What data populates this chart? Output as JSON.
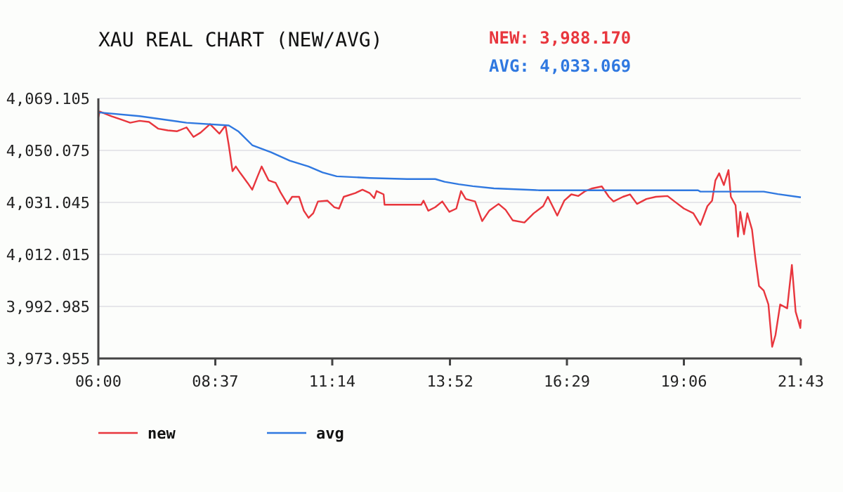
{
  "chart_data": {
    "type": "line",
    "title": "XAU REAL CHART (NEW/AVG)",
    "annotations": [
      "NEW: 3,988.170",
      "AVG: 4,033.069"
    ],
    "xlim": [
      6,
      21.7167
    ],
    "xticks": [
      {
        "value": 6,
        "label": "06:00"
      },
      {
        "value": 8.6167,
        "label": "08:37"
      },
      {
        "value": 11.2333,
        "label": "11:14"
      },
      {
        "value": 13.8667,
        "label": "13:52"
      },
      {
        "value": 16.4833,
        "label": "16:29"
      },
      {
        "value": 19.1,
        "label": "19:06"
      },
      {
        "value": 21.7167,
        "label": "21:43"
      }
    ],
    "ylim": [
      3973.955,
      4069.105
    ],
    "yticks": [
      {
        "value": 3973.955,
        "label": "3,973.955"
      },
      {
        "value": 3992.985,
        "label": "3,992.985"
      },
      {
        "value": 4012.015,
        "label": "4,012.015"
      },
      {
        "value": 4031.045,
        "label": "4,031.045"
      },
      {
        "value": 4050.075,
        "label": "4,050.075"
      },
      {
        "value": 4069.105,
        "label": "4,069.105"
      }
    ],
    "grid": "y",
    "legend": "bottom",
    "marker": "none",
    "line_style": "solid",
    "series": [
      {
        "name": "new",
        "color": "#e8363d",
        "x": [
          6.0,
          6.03,
          6.135,
          6.293,
          6.503,
          6.713,
          6.923,
          7.133,
          7.343,
          7.553,
          7.763,
          7.973,
          8.13,
          8.288,
          8.498,
          8.708,
          8.844,
          8.918,
          9.002,
          9.075,
          9.18,
          9.338,
          9.443,
          9.548,
          9.653,
          9.81,
          9.967,
          10.073,
          10.23,
          10.335,
          10.492,
          10.598,
          10.703,
          10.808,
          10.913,
          11.123,
          11.28,
          11.385,
          11.49,
          11.752,
          11.909,
          12.067,
          12.172,
          12.224,
          12.382,
          12.403,
          12.907,
          13.222,
          13.275,
          13.38,
          13.537,
          13.695,
          13.852,
          14.009,
          14.114,
          14.22,
          14.429,
          14.587,
          14.744,
          14.954,
          15.112,
          15.269,
          15.532,
          15.742,
          15.952,
          16.057,
          16.267,
          16.424,
          16.582,
          16.739,
          16.897,
          17.054,
          17.264,
          17.421,
          17.526,
          17.736,
          17.894,
          18.051,
          18.261,
          18.471,
          18.734,
          18.891,
          19.101,
          19.311,
          19.469,
          19.626,
          19.731,
          19.805,
          19.889,
          19.994,
          20.098,
          20.151,
          20.256,
          20.309,
          20.361,
          20.445,
          20.519,
          20.624,
          20.697,
          20.781,
          20.886,
          20.991,
          21.075,
          21.149,
          21.254,
          21.411,
          21.516,
          21.6,
          21.705,
          21.7167
        ],
        "values": [
          4062.2,
          4064.3,
          4063.6,
          4062.6,
          4061.4,
          4060.2,
          4060.9,
          4060.5,
          4058.0,
          4057.4,
          4057.1,
          4058.5,
          4055.0,
          4056.6,
          4059.7,
          4056.2,
          4059.2,
          4052.0,
          4042.5,
          4044.2,
          4041.7,
          4038.2,
          4035.7,
          4040.0,
          4044.2,
          4039.1,
          4038.2,
          4034.8,
          4030.5,
          4033.1,
          4033.1,
          4028.0,
          4025.4,
          4027.1,
          4031.4,
          4031.7,
          4029.3,
          4028.8,
          4033.1,
          4034.5,
          4035.7,
          4034.5,
          4032.6,
          4035.2,
          4034.0,
          4030.2,
          4030.2,
          4030.2,
          4031.7,
          4028.0,
          4029.3,
          4031.4,
          4027.6,
          4028.8,
          4035.2,
          4032.3,
          4031.4,
          4024.2,
          4028.0,
          4030.5,
          4028.3,
          4024.5,
          4023.7,
          4027.1,
          4029.7,
          4033.1,
          4026.2,
          4031.7,
          4034.0,
          4033.4,
          4035.2,
          4036.2,
          4036.9,
          4033.1,
          4031.4,
          4033.1,
          4034.0,
          4030.5,
          4032.3,
          4033.1,
          4033.4,
          4031.4,
          4028.8,
          4027.1,
          4022.8,
          4029.7,
          4031.7,
          4039.1,
          4041.7,
          4037.4,
          4042.9,
          4033.1,
          4030.0,
          4018.5,
          4027.6,
          4019.4,
          4027.1,
          4021.1,
          4010.8,
          4000.5,
          3998.8,
          3993.7,
          3978.2,
          3982.5,
          3993.7,
          3992.3,
          4008.2,
          3991.1,
          3985.1,
          3988.2
        ]
      },
      {
        "name": "avg",
        "color": "#2f78e0",
        "x": [
          6.0,
          6.923,
          7.973,
          8.918,
          9.128,
          9.443,
          9.863,
          10.283,
          10.703,
          11.018,
          11.333,
          12.067,
          12.907,
          13.537,
          13.747,
          14.062,
          14.377,
          14.849,
          15.847,
          19.416,
          19.469,
          20.886,
          21.201,
          21.7167
        ],
        "values": [
          4064.0,
          4062.6,
          4060.2,
          4059.2,
          4057.1,
          4052.0,
          4049.4,
          4046.3,
          4044.2,
          4042.0,
          4040.6,
          4040.0,
          4039.6,
          4039.6,
          4038.6,
          4037.7,
          4037.0,
          4036.2,
          4035.5,
          4035.5,
          4035.0,
          4035.0,
          4034.1,
          4032.9
        ]
      }
    ]
  }
}
